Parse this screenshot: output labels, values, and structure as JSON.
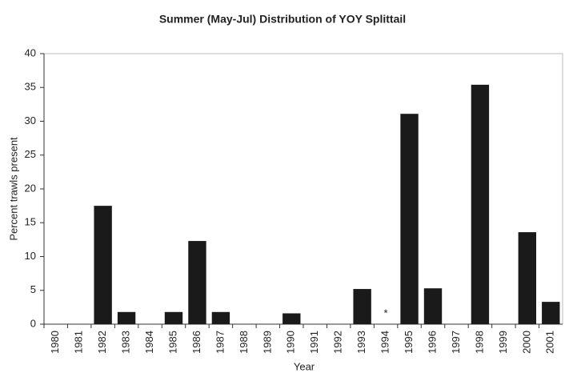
{
  "chart_data": {
    "type": "bar",
    "title": "Summer (May-Jul) Distribution of YOY Splittail",
    "x_label": "Year",
    "y_label": "Percent trawls present",
    "categories": [
      "1980",
      "1981",
      "1982",
      "1983",
      "1984",
      "1985",
      "1986",
      "1987",
      "1988",
      "1989",
      "1990",
      "1991",
      "1992",
      "1993",
      "1994",
      "1995",
      "1996",
      "1997",
      "1998",
      "1999",
      "2000",
      "2001"
    ],
    "values": [
      0,
      0,
      17.5,
      1.8,
      0,
      1.8,
      12.3,
      1.8,
      0,
      0,
      1.6,
      0,
      0,
      5.2,
      null,
      31.1,
      5.3,
      0,
      35.4,
      0,
      13.6,
      3.3
    ],
    "color": "#1a1a1a",
    "ylim": [
      0,
      40
    ],
    "yticks": [
      0,
      5,
      10,
      15,
      20,
      25,
      30,
      35,
      40
    ],
    "grid": false,
    "annotations": [
      {
        "text": "*",
        "x": "1994"
      }
    ]
  }
}
